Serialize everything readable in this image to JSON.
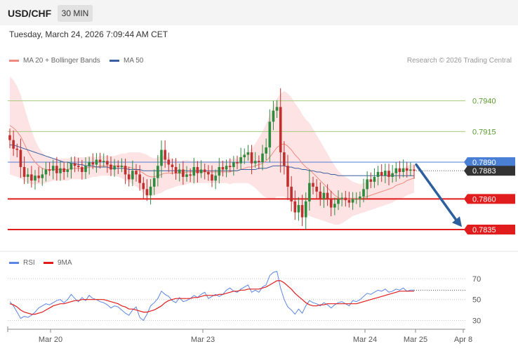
{
  "header": {
    "symbol": "USD/CHF",
    "timeframe": "30 MIN",
    "timestamp": "Tuesday, March 24, 2026 7:09:44 AM CET"
  },
  "legend": {
    "ma20": "MA 20 + Bollinger Bands",
    "ma50": "MA 50",
    "copyright": "Research © 2026 Trading Central"
  },
  "rsi_legend": {
    "rsi": "RSI",
    "ma9": "9MA"
  },
  "colors": {
    "ma20": "#f08a80",
    "ma50": "#3a5fa0",
    "bands": "#fde3e3",
    "up": "#2e8b3d",
    "down": "#c0302e",
    "support": "#e01c1c",
    "resistance": "#a6cc7e",
    "pivot": "#4a7fd6",
    "rsi": "#5b86e5",
    "rsi_ma": "#e01c1c",
    "current_bg": "#333333",
    "arrow": "#2d5f9e"
  },
  "chart_data": [
    {
      "type": "candlestick",
      "instrument": "USD/CHF",
      "timeframe": "30 MIN",
      "ylim": [
        0.7823,
        0.7965
      ],
      "x_ticks": [
        "Mar 20",
        "Mar 23",
        "Mar 24",
        "Mar 25",
        "Apr 8"
      ],
      "levels": [
        {
          "label": "0.7940",
          "value": 0.794,
          "kind": "resistance"
        },
        {
          "label": "0.7915",
          "value": 0.7915,
          "kind": "resistance"
        },
        {
          "label": "0.7890",
          "value": 0.789,
          "kind": "pivot"
        },
        {
          "label": "0.7883",
          "value": 0.7883,
          "kind": "current"
        },
        {
          "label": "0.7860",
          "value": 0.786,
          "kind": "support"
        },
        {
          "label": "0.7835",
          "value": 0.7835,
          "kind": "support"
        }
      ],
      "closes": [
        0.7908,
        0.7901,
        0.79,
        0.7886,
        0.7878,
        0.788,
        0.7875,
        0.7879,
        0.7877,
        0.788,
        0.7884,
        0.7883,
        0.7887,
        0.7881,
        0.7885,
        0.7882,
        0.7884,
        0.7889,
        0.7887,
        0.7886,
        0.7882,
        0.7887,
        0.789,
        0.7888,
        0.7892,
        0.789,
        0.7891,
        0.7888,
        0.7884,
        0.7887,
        0.7886,
        0.7887,
        0.788,
        0.7876,
        0.7883,
        0.788,
        0.7873,
        0.7868,
        0.7863,
        0.787,
        0.7877,
        0.7887,
        0.79,
        0.7892,
        0.7888,
        0.7886,
        0.7881,
        0.7884,
        0.7878,
        0.788,
        0.7879,
        0.7886,
        0.7881,
        0.7884,
        0.7882,
        0.788,
        0.7875,
        0.7879,
        0.7886,
        0.7884,
        0.7887,
        0.7886,
        0.789,
        0.7889,
        0.7894,
        0.7896,
        0.7898,
        0.7889,
        0.7891,
        0.789,
        0.7897,
        0.7902,
        0.7923,
        0.7932,
        0.7935,
        0.7898,
        0.7887,
        0.787,
        0.7858,
        0.7849,
        0.7855,
        0.7845,
        0.7858,
        0.7873,
        0.787,
        0.7866,
        0.786,
        0.7865,
        0.786,
        0.7853,
        0.7856,
        0.786,
        0.7861,
        0.7859,
        0.7857,
        0.786,
        0.786,
        0.7862,
        0.7868,
        0.7876,
        0.7874,
        0.7878,
        0.7882,
        0.7879,
        0.7883,
        0.7878,
        0.7881,
        0.7885,
        0.7882,
        0.7885,
        0.7883,
        0.7884,
        0.7883
      ],
      "ma20": [
        0.792,
        0.7918,
        0.7915,
        0.7911,
        0.7905,
        0.7899,
        0.7894,
        0.789,
        0.7887,
        0.7885,
        0.7884,
        0.7884,
        0.7884,
        0.7884,
        0.7884,
        0.7884,
        0.7884,
        0.7885,
        0.7885,
        0.7885,
        0.7885,
        0.7885,
        0.7886,
        0.7886,
        0.7886,
        0.7887,
        0.7887,
        0.7887,
        0.7887,
        0.7887,
        0.7887,
        0.7887,
        0.7886,
        0.7886,
        0.7885,
        0.7884,
        0.7883,
        0.7881,
        0.7879,
        0.7878,
        0.7878,
        0.7879,
        0.788,
        0.7881,
        0.7881,
        0.7881,
        0.7881,
        0.7881,
        0.7881,
        0.7882,
        0.7882,
        0.7882,
        0.7882,
        0.7882,
        0.7882,
        0.7882,
        0.7882,
        0.7882,
        0.7882,
        0.7882,
        0.7882,
        0.7882,
        0.7883,
        0.7883,
        0.7884,
        0.7885,
        0.7886,
        0.7886,
        0.7887,
        0.7888,
        0.7889,
        0.7891,
        0.7894,
        0.7898,
        0.7902,
        0.7904,
        0.7905,
        0.7903,
        0.79,
        0.7896,
        0.7893,
        0.7889,
        0.7886,
        0.7884,
        0.7881,
        0.7878,
        0.7875,
        0.7872,
        0.7869,
        0.7866,
        0.7863,
        0.7861,
        0.786,
        0.786,
        0.786,
        0.786,
        0.786,
        0.786,
        0.7861,
        0.7862,
        0.7863,
        0.7864,
        0.7865,
        0.7866,
        0.7867,
        0.7868,
        0.7869,
        0.7871,
        0.7872,
        0.7873,
        0.7875,
        0.7876,
        0.7877
      ],
      "ma50": [
        0.7904,
        0.7904,
        0.7903,
        0.7902,
        0.7901,
        0.79,
        0.7899,
        0.7898,
        0.7897,
        0.7896,
        0.7895,
        0.7894,
        0.7893,
        0.7892,
        0.7891,
        0.789,
        0.789,
        0.7889,
        0.7889,
        0.7888,
        0.7888,
        0.7887,
        0.7887,
        0.7887,
        0.7886,
        0.7886,
        0.7886,
        0.7886,
        0.7885,
        0.7885,
        0.7885,
        0.7885,
        0.7885,
        0.7884,
        0.7884,
        0.7884,
        0.7884,
        0.7883,
        0.7883,
        0.7883,
        0.7883,
        0.7883,
        0.7883,
        0.7883,
        0.7883,
        0.7883,
        0.7883,
        0.7883,
        0.7883,
        0.7883,
        0.7883,
        0.7883,
        0.7883,
        0.7883,
        0.7883,
        0.7883,
        0.7883,
        0.7883,
        0.7883,
        0.7883,
        0.7883,
        0.7883,
        0.7883,
        0.7883,
        0.7884,
        0.7884,
        0.7884,
        0.7884,
        0.7884,
        0.7885,
        0.7885,
        0.7885,
        0.7886,
        0.7887,
        0.7887,
        0.7887,
        0.7887,
        0.7886,
        0.7886,
        0.7885,
        0.7885,
        0.7884,
        0.7884,
        0.7883,
        0.7883,
        0.7882,
        0.7882,
        0.7881,
        0.7881,
        0.788,
        0.788,
        0.7879,
        0.7879,
        0.7879,
        0.7879,
        0.7879,
        0.7879,
        0.7879,
        0.7879,
        0.7879,
        0.7879,
        0.7879,
        0.7879,
        0.7879,
        0.7879,
        0.7879,
        0.7879,
        0.7879,
        0.7879,
        0.7879,
        0.7879,
        0.7879,
        0.7879
      ],
      "bb_width": [
        0.004,
        0.0039,
        0.0037,
        0.0034,
        0.003,
        0.0026,
        0.0022,
        0.0018,
        0.0015,
        0.0013,
        0.0011,
        0.001,
        0.0009,
        0.0009,
        0.0009,
        0.0009,
        0.0009,
        0.0009,
        0.0009,
        0.0009,
        0.0009,
        0.0009,
        0.0009,
        0.0008,
        0.0008,
        0.0008,
        0.0008,
        0.0008,
        0.0008,
        0.0008,
        0.0009,
        0.001,
        0.0011,
        0.0012,
        0.0013,
        0.0014,
        0.0015,
        0.0016,
        0.0017,
        0.0016,
        0.0015,
        0.0015,
        0.0015,
        0.0014,
        0.0013,
        0.0012,
        0.0011,
        0.001,
        0.001,
        0.001,
        0.0009,
        0.0009,
        0.0009,
        0.0009,
        0.0009,
        0.0009,
        0.0009,
        0.0009,
        0.0009,
        0.0009,
        0.0009,
        0.001,
        0.001,
        0.001,
        0.0011,
        0.0012,
        0.0013,
        0.0015,
        0.0018,
        0.0022,
        0.0026,
        0.003,
        0.0034,
        0.0038,
        0.004,
        0.0042,
        0.0043,
        0.0043,
        0.0043,
        0.0042,
        0.0041,
        0.004,
        0.0039,
        0.0038,
        0.0036,
        0.0034,
        0.0032,
        0.003,
        0.0028,
        0.0026,
        0.0024,
        0.0022,
        0.002,
        0.0018,
        0.0016,
        0.0014,
        0.0013,
        0.0012,
        0.0012,
        0.0012,
        0.0012,
        0.0012,
        0.0012,
        0.0012,
        0.0012,
        0.0012,
        0.0012,
        0.0012,
        0.0012,
        0.0012,
        0.0012,
        0.0012,
        0.0012
      ],
      "projection": {
        "from": 0.7888,
        "to": 0.7836,
        "direction": "down"
      }
    },
    {
      "type": "line",
      "name": "RSI",
      "ylim": [
        25,
        78
      ],
      "y_ticks": [
        "70",
        "50",
        "30"
      ],
      "rsi": [
        48,
        44,
        38,
        32,
        34,
        33,
        35,
        38,
        42,
        44,
        46,
        45,
        47,
        49,
        50,
        47,
        50,
        55,
        51,
        48,
        52,
        49,
        54,
        51,
        50,
        48,
        47,
        45,
        42,
        44,
        43,
        40,
        37,
        35,
        40,
        43,
        33,
        30,
        36,
        44,
        47,
        51,
        58,
        55,
        53,
        49,
        47,
        52,
        48,
        49,
        51,
        54,
        52,
        55,
        57,
        51,
        53,
        55,
        53,
        55,
        59,
        61,
        58,
        57,
        60,
        62,
        64,
        57,
        59,
        57,
        62,
        64,
        73,
        76,
        77,
        61,
        50,
        43,
        40,
        36,
        41,
        37,
        44,
        49,
        47,
        46,
        44,
        47,
        45,
        42,
        45,
        47,
        48,
        46,
        44,
        49,
        48,
        50,
        53,
        56,
        55,
        57,
        59,
        58,
        60,
        57,
        58,
        60,
        59,
        61,
        58,
        59,
        59
      ],
      "ma9": [
        46,
        45,
        43,
        40,
        38,
        37,
        36,
        36,
        37,
        38,
        40,
        42,
        44,
        45,
        46,
        46,
        47,
        48,
        49,
        49,
        50,
        50,
        50,
        50,
        50,
        50,
        50,
        49,
        48,
        47,
        46,
        44,
        43,
        41,
        41,
        40,
        39,
        38,
        38,
        39,
        40,
        42,
        44,
        47,
        49,
        50,
        51,
        51,
        51,
        51,
        51,
        52,
        52,
        53,
        54,
        54,
        54,
        54,
        55,
        55,
        56,
        57,
        58,
        58,
        59,
        59,
        60,
        60,
        60,
        60,
        61,
        62,
        64,
        66,
        68,
        68,
        66,
        63,
        60,
        56,
        53,
        50,
        47,
        45,
        44,
        44,
        45,
        45,
        46,
        46,
        46,
        46,
        46,
        46,
        46,
        46,
        46,
        47,
        48,
        49,
        50,
        51,
        52,
        53,
        54,
        55,
        56,
        57,
        58,
        58,
        58,
        58,
        58
      ]
    }
  ]
}
